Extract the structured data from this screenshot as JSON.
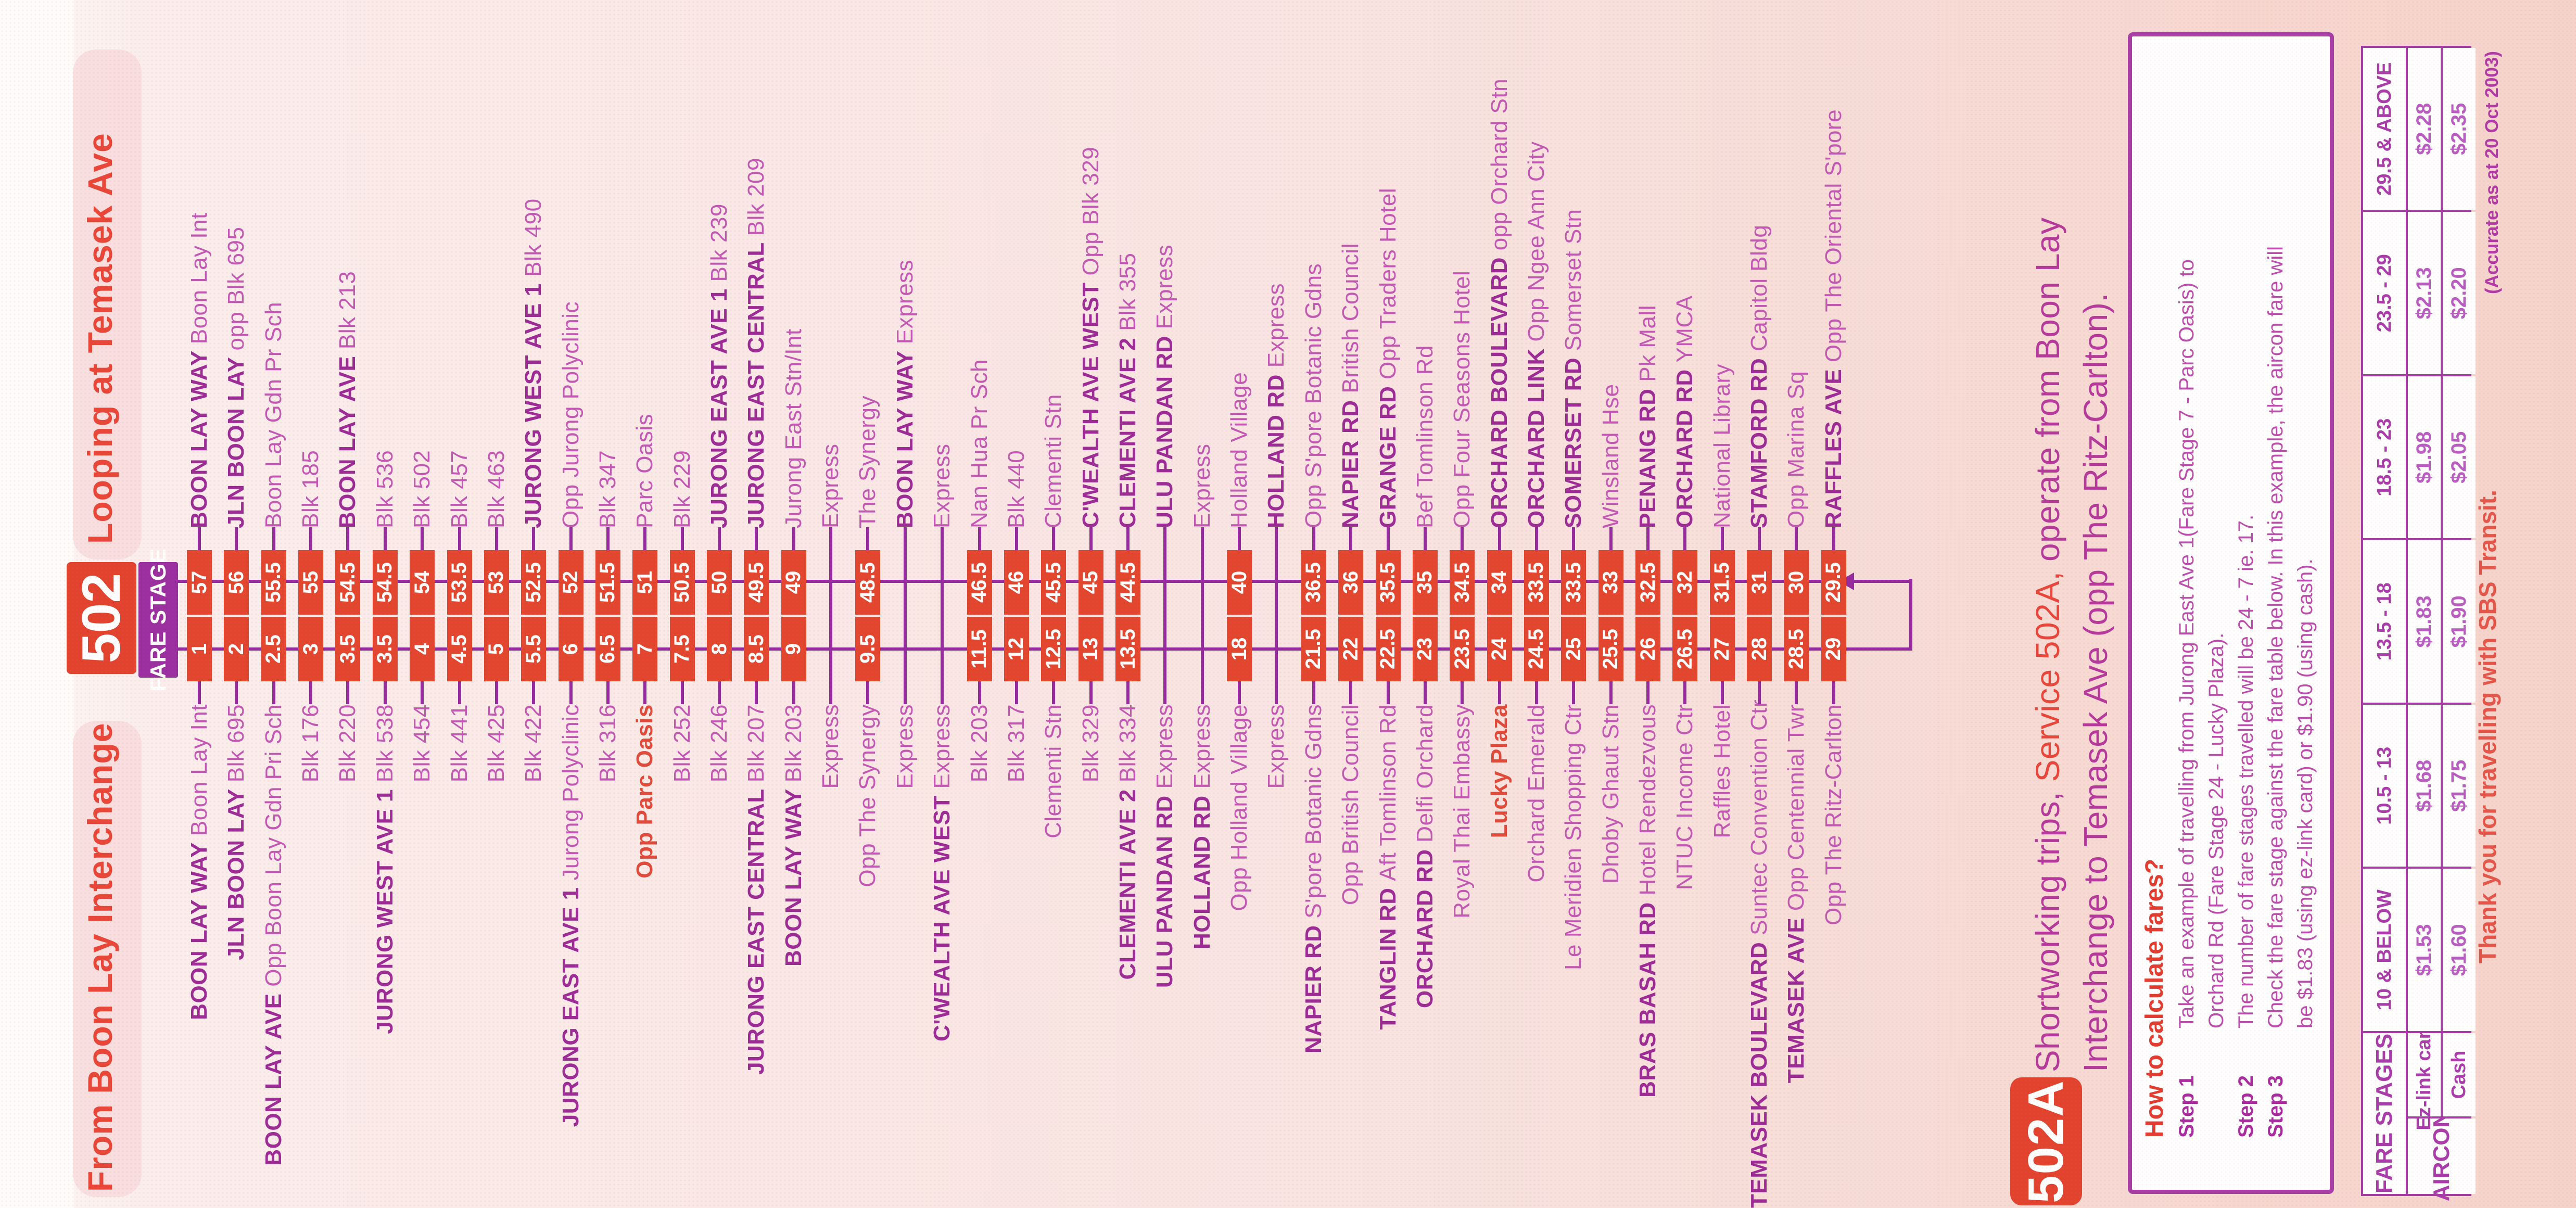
{
  "header": {
    "from_title": "From Boon Lay Interchange",
    "service_number": "502",
    "loop_title": "Looping at Temasek Ave",
    "fare_stage_label": "FARE STAGE"
  },
  "route": {
    "stops": [
      {
        "ret": {
          "prefix": "BOON LAY WAY",
          "name": "Boon Lay Int",
          "stage": "57"
        },
        "out": {
          "prefix": "BOON LAY WAY",
          "name": "Boon Lay Int",
          "stage": "1"
        },
        "express": false
      },
      {
        "ret": {
          "prefix": "JLN BOON LAY",
          "name": "opp Blk 695",
          "stage": "56"
        },
        "out": {
          "prefix": "JLN BOON LAY",
          "name": "Blk 695",
          "stage": "2"
        },
        "express": false
      },
      {
        "ret": {
          "prefix": null,
          "name": "Boon Lay Gdn Pr Sch",
          "stage": "55.5"
        },
        "out": {
          "prefix": "BOON LAY AVE",
          "name": "Opp Boon Lay Gdn Pri Sch",
          "stage": "2.5"
        },
        "express": false
      },
      {
        "ret": {
          "prefix": null,
          "name": "Blk 185",
          "stage": "55"
        },
        "out": {
          "prefix": null,
          "name": "Blk 176",
          "stage": "3"
        },
        "express": false
      },
      {
        "ret": {
          "prefix": "BOON LAY AVE",
          "name": "Blk 213",
          "stage": "54.5"
        },
        "out": {
          "prefix": null,
          "name": "Blk 220",
          "stage": "3.5"
        },
        "express": false
      },
      {
        "ret": {
          "prefix": null,
          "name": "Blk 536",
          "stage": "54.5"
        },
        "out": {
          "prefix": "JURONG WEST AVE 1",
          "name": "Blk 538",
          "stage": "3.5"
        },
        "express": false
      },
      {
        "ret": {
          "prefix": null,
          "name": "Blk 502",
          "stage": "54"
        },
        "out": {
          "prefix": null,
          "name": "Blk 454",
          "stage": "4"
        },
        "express": false
      },
      {
        "ret": {
          "prefix": null,
          "name": "Blk 457",
          "stage": "53.5"
        },
        "out": {
          "prefix": null,
          "name": "Blk 441",
          "stage": "4.5"
        },
        "express": false
      },
      {
        "ret": {
          "prefix": null,
          "name": "Blk 463",
          "stage": "53"
        },
        "out": {
          "prefix": null,
          "name": "Blk 425",
          "stage": "5"
        },
        "express": false
      },
      {
        "ret": {
          "prefix": "JURONG WEST AVE 1",
          "name": "Blk 490",
          "stage": "52.5"
        },
        "out": {
          "prefix": null,
          "name": "Blk 422",
          "stage": "5.5"
        },
        "express": false
      },
      {
        "ret": {
          "prefix": null,
          "name": "Opp Jurong Polyclinic",
          "stage": "52"
        },
        "out": {
          "prefix": "JURONG EAST AVE 1",
          "name": "Jurong Polyclinic",
          "stage": "6"
        },
        "express": false
      },
      {
        "ret": {
          "prefix": null,
          "name": "Blk 347",
          "stage": "51.5"
        },
        "out": {
          "prefix": null,
          "name": "Blk 316",
          "stage": "6.5"
        },
        "express": false
      },
      {
        "ret": {
          "prefix": null,
          "name": "Parc Oasis",
          "stage": "51"
        },
        "out": {
          "prefix": null,
          "name": "Opp Parc Oasis",
          "stage": "7",
          "highlight": true
        },
        "express": false
      },
      {
        "ret": {
          "prefix": null,
          "name": "Blk 229",
          "stage": "50.5"
        },
        "out": {
          "prefix": null,
          "name": "Blk 252",
          "stage": "7.5"
        },
        "express": false
      },
      {
        "ret": {
          "prefix": "JURONG EAST AVE 1",
          "name": "Blk 239",
          "stage": "50"
        },
        "out": {
          "prefix": null,
          "name": "Blk 246",
          "stage": "8"
        },
        "express": false
      },
      {
        "ret": {
          "prefix": "JURONG EAST CENTRAL",
          "name": "Blk 209",
          "stage": "49.5"
        },
        "out": {
          "prefix": "JURONG EAST CENTRAL",
          "name": "Blk 207",
          "stage": "8.5"
        },
        "express": false
      },
      {
        "ret": {
          "prefix": null,
          "name": "Jurong East Stn/Int",
          "stage": "49"
        },
        "out": {
          "prefix": "BOON LAY WAY",
          "name": "Blk 203",
          "stage": "9"
        },
        "express": false
      },
      {
        "ret": {
          "prefix": null,
          "name": "Express",
          "stage": null
        },
        "out": {
          "prefix": null,
          "name": "Express",
          "stage": null
        },
        "express": true
      },
      {
        "ret": {
          "prefix": null,
          "name": "The Synergy",
          "stage": "48.5"
        },
        "out": {
          "prefix": null,
          "name": "Opp The Synergy",
          "stage": "9.5"
        },
        "express": false
      },
      {
        "ret": {
          "prefix": "BOON LAY WAY",
          "name": "Express",
          "stage": null
        },
        "out": {
          "prefix": null,
          "name": "Express",
          "stage": null
        },
        "express": true
      },
      {
        "ret": {
          "prefix": null,
          "name": "Express",
          "stage": null
        },
        "out": {
          "prefix": "C'WEALTH AVE WEST",
          "name": "Express",
          "stage": null
        },
        "express": true
      },
      {
        "ret": {
          "prefix": null,
          "name": "Nan Hua Pr Sch",
          "stage": "46.5"
        },
        "out": {
          "prefix": null,
          "name": "Blk 203",
          "stage": "11.5"
        },
        "express": false
      },
      {
        "ret": {
          "prefix": null,
          "name": "Blk 440",
          "stage": "46"
        },
        "out": {
          "prefix": null,
          "name": "Blk 317",
          "stage": "12"
        },
        "express": false
      },
      {
        "ret": {
          "prefix": null,
          "name": "Clementi Stn",
          "stage": "45.5"
        },
        "out": {
          "prefix": null,
          "name": "Clementi Stn",
          "stage": "12.5"
        },
        "express": false
      },
      {
        "ret": {
          "prefix": "C'WEALTH AVE WEST",
          "name": "Opp Blk 329",
          "stage": "45"
        },
        "out": {
          "prefix": null,
          "name": "Blk 329",
          "stage": "13"
        },
        "express": false
      },
      {
        "ret": {
          "prefix": "CLEMENTI AVE 2",
          "name": "Blk 355",
          "stage": "44.5"
        },
        "out": {
          "prefix": "CLEMENTI AVE 2",
          "name": "Blk 334",
          "stage": "13.5"
        },
        "express": false
      },
      {
        "ret": {
          "prefix": "ULU PANDAN RD",
          "name": "Express",
          "stage": null
        },
        "out": {
          "prefix": "ULU PANDAN RD",
          "name": "Express",
          "stage": null
        },
        "express": true
      },
      {
        "ret": {
          "prefix": null,
          "name": "Express",
          "stage": null
        },
        "out": {
          "prefix": "HOLLAND RD",
          "name": "Express",
          "stage": null
        },
        "express": true
      },
      {
        "ret": {
          "prefix": null,
          "name": "Holland Village",
          "stage": "40"
        },
        "out": {
          "prefix": null,
          "name": "Opp Holland Village",
          "stage": "18"
        },
        "express": false
      },
      {
        "ret": {
          "prefix": "HOLLAND RD",
          "name": "Express",
          "stage": null
        },
        "out": {
          "prefix": null,
          "name": "Express",
          "stage": null
        },
        "express": true
      },
      {
        "ret": {
          "prefix": null,
          "name": "Opp S'pore Botanic Gdns",
          "stage": "36.5"
        },
        "out": {
          "prefix": "NAPIER RD",
          "name": "S'pore Botanic Gdns",
          "stage": "21.5"
        },
        "express": false
      },
      {
        "ret": {
          "prefix": "NAPIER RD",
          "name": "British Council",
          "stage": "36"
        },
        "out": {
          "prefix": null,
          "name": "Opp British Council",
          "stage": "22"
        },
        "express": false
      },
      {
        "ret": {
          "prefix": "GRANGE RD",
          "name": "Opp Traders Hotel",
          "stage": "35.5"
        },
        "out": {
          "prefix": "TANGLIN RD",
          "name": "Aft Tomlinson Rd",
          "stage": "22.5"
        },
        "express": false
      },
      {
        "ret": {
          "prefix": null,
          "name": "Bef Tomlinson Rd",
          "stage": "35"
        },
        "out": {
          "prefix": "ORCHARD RD",
          "name": "Delfi Orchard",
          "stage": "23"
        },
        "express": false
      },
      {
        "ret": {
          "prefix": null,
          "name": "Opp Four Seasons Hotel",
          "stage": "34.5"
        },
        "out": {
          "prefix": null,
          "name": "Royal Thai Embassy",
          "stage": "23.5"
        },
        "express": false
      },
      {
        "ret": {
          "prefix": "ORCHARD BOULEVARD",
          "name": "opp Orchard Stn",
          "stage": "34"
        },
        "out": {
          "prefix": null,
          "name": "Lucky Plaza",
          "stage": "24",
          "highlight": true
        },
        "express": false
      },
      {
        "ret": {
          "prefix": "ORCHARD LINK",
          "name": "Opp Ngee Ann City",
          "stage": "33.5"
        },
        "out": {
          "prefix": null,
          "name": "Orchard Emerald",
          "stage": "24.5"
        },
        "express": false
      },
      {
        "ret": {
          "prefix": "SOMERSET RD",
          "name": "Somerset Stn",
          "stage": "33.5"
        },
        "out": {
          "prefix": null,
          "name": "Le Meridien Shopping Ctr",
          "stage": "25"
        },
        "express": false
      },
      {
        "ret": {
          "prefix": null,
          "name": "Winsland Hse",
          "stage": "33"
        },
        "out": {
          "prefix": null,
          "name": "Dhoby Ghaut Stn",
          "stage": "25.5"
        },
        "express": false
      },
      {
        "ret": {
          "prefix": "PENANG RD",
          "name": "Pk Mall",
          "stage": "32.5"
        },
        "out": {
          "prefix": "BRAS BASAH RD",
          "name": "Hotel Rendezvous",
          "stage": "26"
        },
        "express": false
      },
      {
        "ret": {
          "prefix": "ORCHARD RD",
          "name": "YMCA",
          "stage": "32"
        },
        "out": {
          "prefix": null,
          "name": "NTUC Income Ctr",
          "stage": "26.5"
        },
        "express": false
      },
      {
        "ret": {
          "prefix": null,
          "name": "National Library",
          "stage": "31.5"
        },
        "out": {
          "prefix": null,
          "name": "Raffles Hotel",
          "stage": "27"
        },
        "express": false
      },
      {
        "ret": {
          "prefix": "STAMFORD RD",
          "name": "Capitol Bldg",
          "stage": "31"
        },
        "out": {
          "prefix": "TEMASEK BOULEVARD",
          "name": "Suntec Convention Ctr",
          "stage": "28"
        },
        "express": false
      },
      {
        "ret": {
          "prefix": null,
          "name": "Opp Marina Sq",
          "stage": "30"
        },
        "out": {
          "prefix": "TEMASEK AVE",
          "name": "Opp Centennial Twr",
          "stage": "28.5"
        },
        "express": false
      },
      {
        "ret": {
          "prefix": "RAFFLES AVE",
          "name": "Opp The Oriental S'pore",
          "stage": "29.5"
        },
        "out": {
          "prefix": null,
          "name": "Opp The Ritz-Carlton",
          "stage": "29"
        },
        "express": false
      }
    ]
  },
  "panel": {
    "service_code": "502A",
    "headline": {
      "pre": "Shortworking trips, ",
      "service": "Service 502A,",
      "post": "  operate from Boon Lay"
    },
    "headline_line2": "Interchange to Temasek Ave (opp The Ritz-Carlton).",
    "howto": {
      "title": "How to calculate fares?",
      "steps": [
        {
          "label": "Step 1",
          "text": "Take an example of travelling from Jurong East Ave 1(Fare Stage 7 - Parc Oasis) to Orchard Rd (Fare Stage 24 - Lucky Plaza)."
        },
        {
          "label": "Step 2",
          "text": "The number of fare stages travelled will be 24 - 7 ie. 17."
        },
        {
          "label": "Step 3",
          "text": "Check the fare stage against the fare table below. In this example, the aircon fare will be $1.83 (using ez-link card) or $1.90 (using cash)."
        }
      ]
    },
    "fare_table": {
      "corner_label": "FARE STAGES",
      "row_group_label": "AIRCON",
      "stage_ranges": [
        "10 & BELOW",
        "10.5 - 13",
        "13.5 - 18",
        "18.5 - 23",
        "23.5 - 29",
        "29.5 & ABOVE"
      ],
      "rows": [
        {
          "label": "Ez-link card",
          "values": [
            "$1.53",
            "$1.68",
            "$1.83",
            "$1.98",
            "$2.13",
            "$2.28"
          ]
        },
        {
          "label": "Cash",
          "values": [
            "$1.60",
            "$1.75",
            "$1.90",
            "$2.05",
            "$2.20",
            "$2.35"
          ]
        }
      ]
    },
    "accuracy_note": "(Accurate as at 20 Oct 2003)",
    "thank_you": "Thank you for travelling with SBS Transit."
  },
  "colors": {
    "accent_red": "#e2432e",
    "title_red": "#e8463a",
    "rail_purple": "#952b9e",
    "street_magenta": "#9c2b96",
    "stop_magenta": "#c257b4",
    "highlight_red": "#e04a3a"
  }
}
